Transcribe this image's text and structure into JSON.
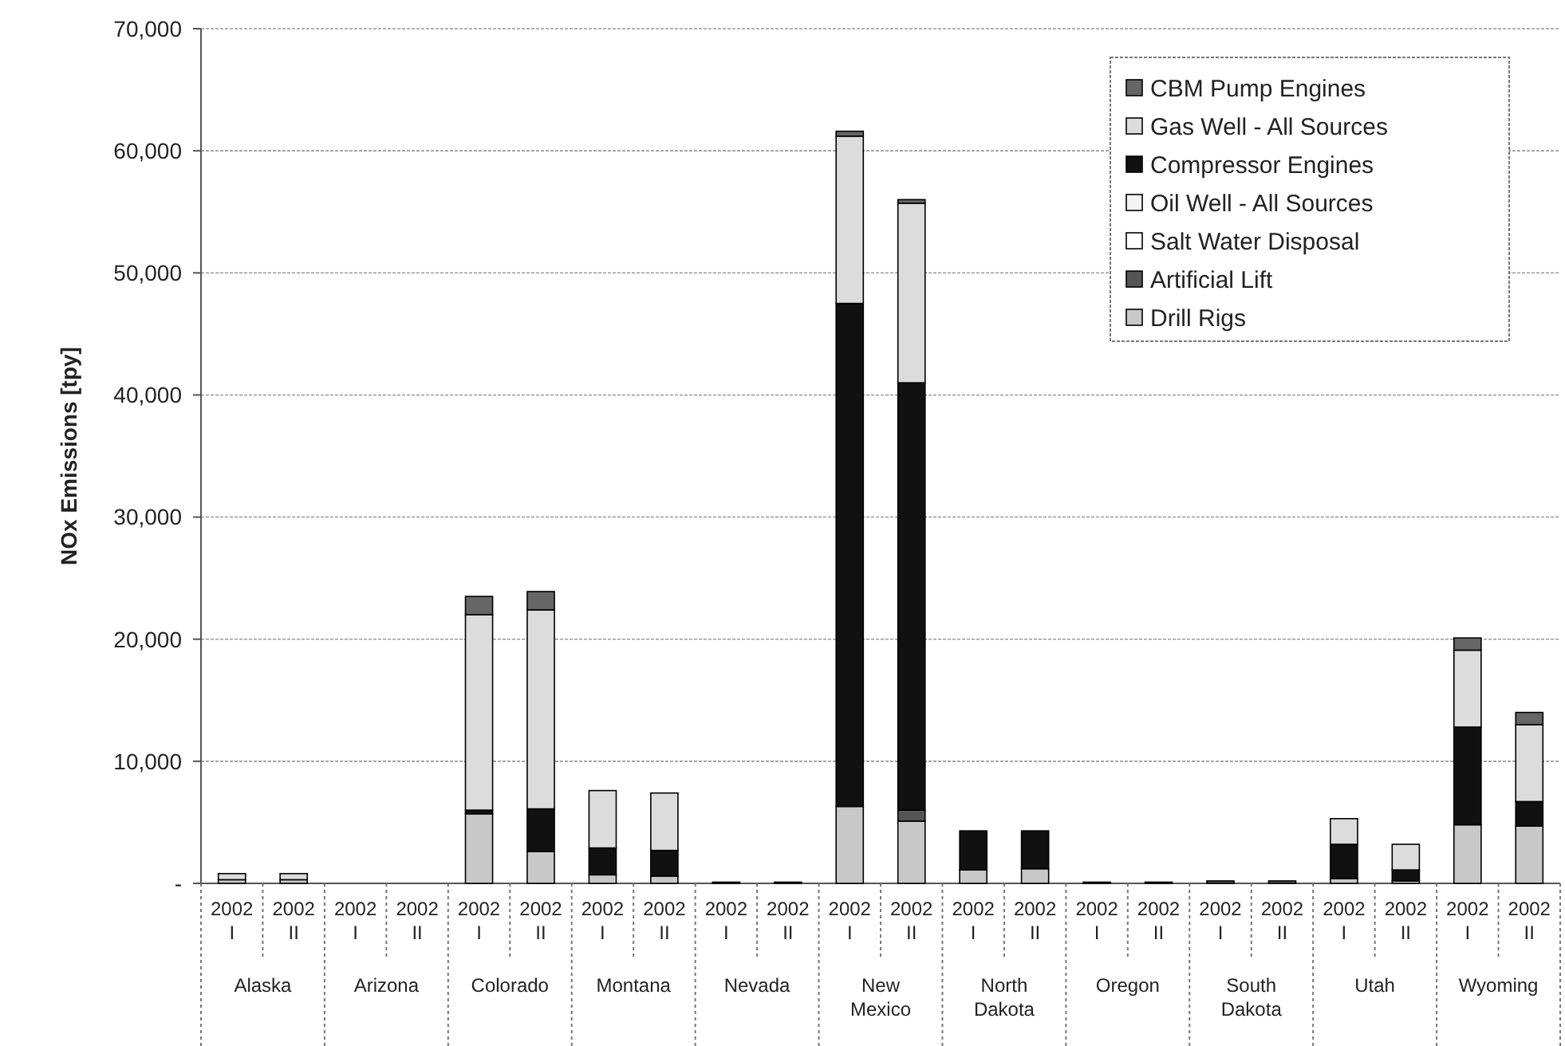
{
  "chart_data": {
    "type": "bar",
    "stacked": true,
    "ylabel": "NOx Emissions [tpy]",
    "categories": [
      "2002 I",
      "2002 II",
      "2002 I",
      "2002 II",
      "2002 I",
      "2002 II",
      "2002 I",
      "2002 II",
      "2002 I",
      "2002 II",
      "2002 I",
      "2002 II",
      "2002 I",
      "2002 II",
      "2002 I",
      "2002 II",
      "2002 I",
      "2002 II",
      "2002 I",
      "2002 II",
      "2002 I",
      "2002 II"
    ],
    "annotations": [
      "Alaska",
      "Arizona",
      "Colorado",
      "Montana",
      "Nevada",
      "New Mexico",
      "North Dakota",
      "Oregon",
      "South Dakota",
      "Utah",
      "Wyoming"
    ],
    "series": [
      {
        "name": "Drill Rigs",
        "color": "#c8c8c8",
        "values": [
          300,
          300,
          0,
          0,
          5700,
          2600,
          700,
          600,
          100,
          100,
          6300,
          5100,
          1100,
          1200,
          0,
          0,
          0,
          0,
          400,
          200,
          4800,
          4700
        ]
      },
      {
        "name": "Artificial Lift",
        "color": "#555555",
        "values": [
          0,
          0,
          0,
          0,
          0,
          0,
          0,
          0,
          0,
          0,
          0,
          900,
          0,
          0,
          0,
          0,
          200,
          200,
          0,
          0,
          0,
          0
        ]
      },
      {
        "name": "Salt Water Disposal",
        "color": "#ffffff",
        "values": [
          0,
          0,
          0,
          0,
          0,
          0,
          0,
          0,
          0,
          0,
          0,
          0,
          0,
          0,
          0,
          0,
          0,
          0,
          0,
          0,
          0,
          0
        ]
      },
      {
        "name": "Oil Well - All Sources",
        "color": "#f4f4f4",
        "values": [
          0,
          0,
          0,
          0,
          0,
          0,
          0,
          0,
          0,
          0,
          0,
          0,
          0,
          0,
          0,
          0,
          0,
          0,
          0,
          0,
          0,
          0
        ]
      },
      {
        "name": "Compressor Engines",
        "color": "#111111",
        "values": [
          0,
          0,
          0,
          0,
          300,
          3500,
          2200,
          2100,
          0,
          0,
          41200,
          35000,
          3200,
          3100,
          0,
          0,
          0,
          0,
          2800,
          900,
          8000,
          2000
        ]
      },
      {
        "name": "Gas Well - All Sources",
        "color": "#dcdcdc",
        "values": [
          500,
          500,
          0,
          0,
          16000,
          16300,
          4700,
          4700,
          0,
          0,
          13700,
          14700,
          0,
          0,
          100,
          100,
          0,
          0,
          2100,
          2100,
          6300,
          6300
        ]
      },
      {
        "name": "CBM Pump Engines",
        "color": "#666666",
        "values": [
          0,
          0,
          0,
          0,
          1500,
          1500,
          0,
          0,
          0,
          0,
          400,
          300,
          0,
          0,
          0,
          0,
          0,
          0,
          0,
          0,
          1000,
          1000
        ]
      }
    ],
    "ylim": [
      0,
      70000
    ],
    "yticks": [
      {
        "value": 0,
        "label": "-"
      },
      {
        "value": 10000,
        "label": "10,000"
      },
      {
        "value": 20000,
        "label": "20,000"
      },
      {
        "value": 30000,
        "label": "30,000"
      },
      {
        "value": 40000,
        "label": "40,000"
      },
      {
        "value": 50000,
        "label": "50,000"
      },
      {
        "value": 60000,
        "label": "60,000"
      },
      {
        "value": 70000,
        "label": "70,000"
      }
    ],
    "grid": "y",
    "legend": "top right"
  }
}
